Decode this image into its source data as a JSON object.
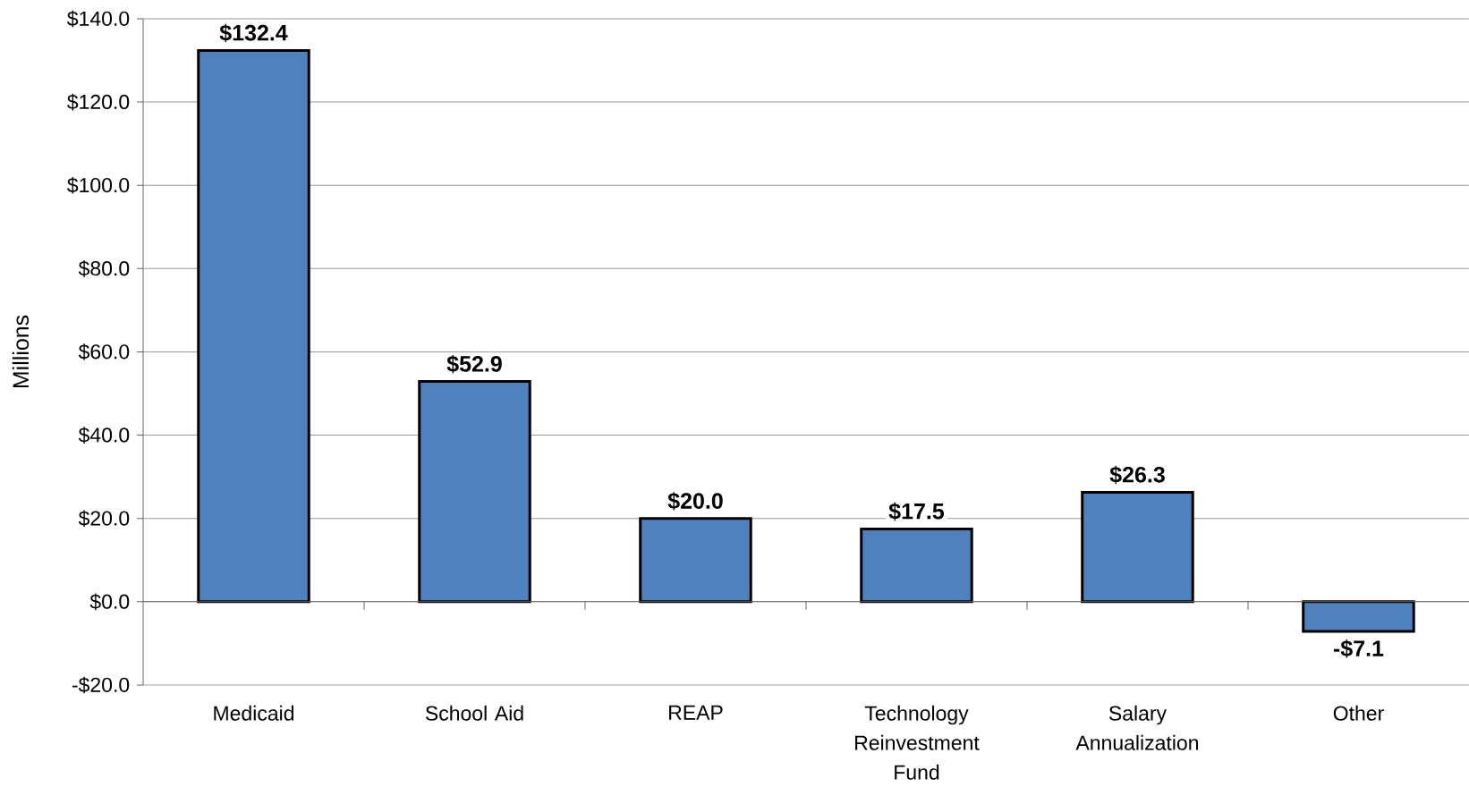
{
  "chart_data": {
    "type": "bar",
    "ylabel": "Millions",
    "categories": [
      "Medicaid",
      "School Aid",
      "REAP",
      "Technology Reinvestment Fund",
      "Salary Annualization",
      "Other"
    ],
    "values": [
      132.4,
      52.9,
      20.0,
      17.5,
      26.3,
      -7.1
    ],
    "value_labels": [
      "$132.4",
      "$52.9",
      "$20.0",
      "$17.5",
      "$26.3",
      "-$7.1"
    ],
    "color": "#4f81bd",
    "ylim": [
      -20,
      140
    ],
    "yticks": [
      {
        "value": -20,
        "label": "-$20.0"
      },
      {
        "value": 0,
        "label": "$0.0"
      },
      {
        "value": 20,
        "label": "$20.0"
      },
      {
        "value": 40,
        "label": "$40.0"
      },
      {
        "value": 60,
        "label": "$60.0"
      },
      {
        "value": 80,
        "label": "$80.0"
      },
      {
        "value": 100,
        "label": "$100.0"
      },
      {
        "value": 120,
        "label": "$120.0"
      },
      {
        "value": 140,
        "label": "$140.0"
      }
    ],
    "grid": "y"
  }
}
